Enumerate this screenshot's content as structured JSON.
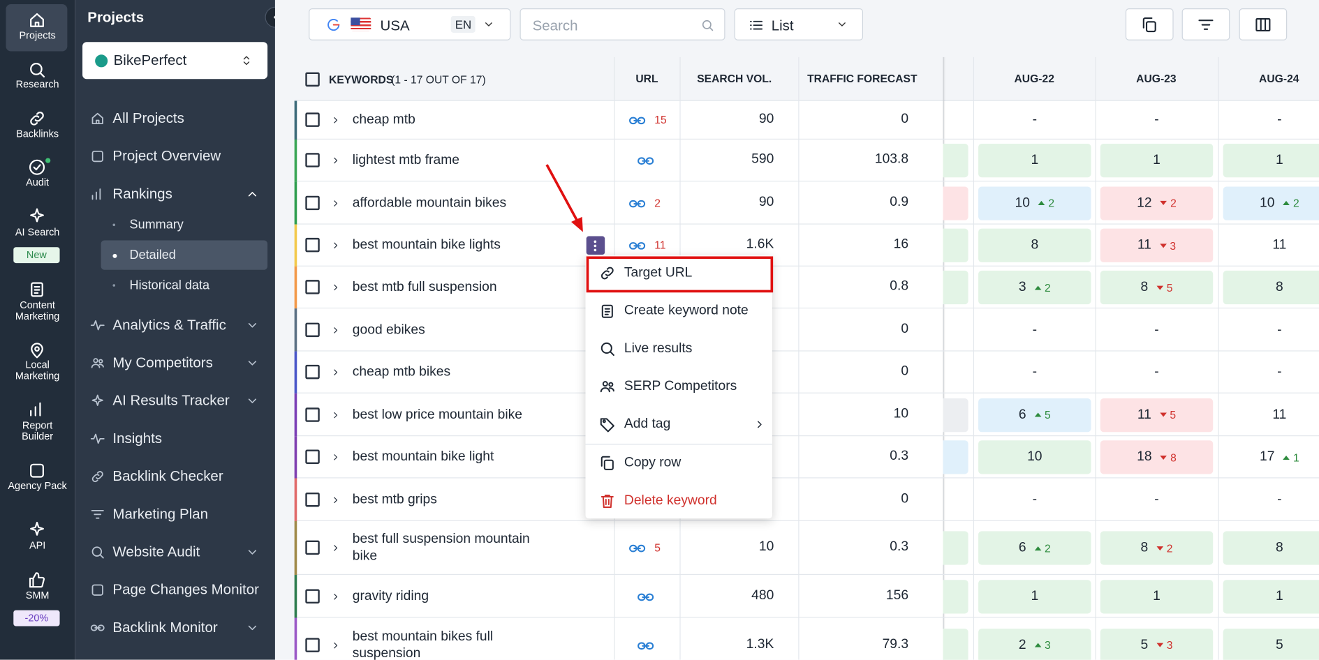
{
  "rail": {
    "items": [
      {
        "label": "Projects",
        "active": true
      },
      {
        "label": "Research"
      },
      {
        "label": "Backlinks"
      },
      {
        "label": "Audit"
      },
      {
        "label": "AI Search",
        "badge": "New"
      },
      {
        "label": "Content Marketing"
      },
      {
        "label": "Local Marketing"
      },
      {
        "label": "Report Builder"
      },
      {
        "label": "Agency Pack"
      },
      {
        "label": "API"
      },
      {
        "label": "SMM",
        "badge": "-20%"
      }
    ]
  },
  "sidebar": {
    "title": "Projects",
    "project": "BikePerfect",
    "nav": [
      {
        "label": "All Projects"
      },
      {
        "label": "Project Overview"
      },
      {
        "label": "Rankings",
        "expanded": true,
        "children": [
          {
            "label": "Summary"
          },
          {
            "label": "Detailed",
            "active": true
          },
          {
            "label": "Historical data"
          }
        ]
      },
      {
        "label": "Analytics & Traffic",
        "expandable": true
      },
      {
        "label": "My Competitors",
        "expandable": true
      },
      {
        "label": "AI Results Tracker",
        "expandable": true
      },
      {
        "label": "Insights"
      },
      {
        "label": "Backlink Checker"
      },
      {
        "label": "Marketing Plan"
      },
      {
        "label": "Website Audit",
        "expandable": true
      },
      {
        "label": "Page Changes Monitor"
      },
      {
        "label": "Backlink Monitor",
        "expandable": true
      }
    ]
  },
  "toolbar": {
    "country": "USA",
    "language": "EN",
    "search_placeholder": "Search",
    "view": "List"
  },
  "table": {
    "header": {
      "keywords": "KEYWORDS",
      "count": "(1 - 17 OUT OF 17)",
      "url": "URL",
      "search_vol": "SEARCH VOL.",
      "traffic": "TRAFFIC FORECAST",
      "months": [
        "AUG-22",
        "AUG-23",
        "AUG-24"
      ]
    },
    "rows": [
      {
        "keyword": "cheap mtb",
        "color": "#3d6b7a",
        "link": true,
        "url_count": 15,
        "search_vol": 90,
        "traffic": 0,
        "prev_color": null,
        "ranks": [
          {
            "value": "-"
          },
          {
            "value": "-"
          },
          {
            "value": "-"
          }
        ]
      },
      {
        "keyword": "lightest mtb frame",
        "color": "#3aa655",
        "link": true,
        "url_count": null,
        "search_vol": 590,
        "traffic": 103.8,
        "prev_color": "green",
        "ranks": [
          {
            "value": 1,
            "color": "green"
          },
          {
            "value": 1,
            "color": "green"
          },
          {
            "value": 1,
            "color": "green"
          }
        ]
      },
      {
        "keyword": "affordable mountain bikes",
        "color": "#2f9e4f",
        "link": true,
        "url_count": 2,
        "search_vol": 90,
        "traffic": 0.9,
        "prev_color": "red",
        "ranks": [
          {
            "value": 10,
            "change": 2,
            "trend": "up",
            "color": "blue"
          },
          {
            "value": 12,
            "change": 2,
            "trend": "down",
            "color": "red"
          },
          {
            "value": 10,
            "change": 2,
            "trend": "up",
            "color": "blue"
          }
        ]
      },
      {
        "keyword": "best mountain bike lights",
        "color": "#f2c94c",
        "link": true,
        "url_count": 11,
        "search_vol": "1.6K",
        "traffic": 16,
        "prev_color": "green",
        "ranks": [
          {
            "value": 8,
            "color": "green"
          },
          {
            "value": 11,
            "change": 3,
            "trend": "down",
            "color": "red"
          },
          {
            "value": 11
          }
        ]
      },
      {
        "keyword": "best mtb full suspension",
        "color": "#f2994a",
        "link": false,
        "url_count": null,
        "search_vol": null,
        "traffic": 0.8,
        "prev_color": "green",
        "ranks": [
          {
            "value": 3,
            "change": 2,
            "trend": "up",
            "color": "green"
          },
          {
            "value": 8,
            "change": 5,
            "trend": "down",
            "color": "green"
          },
          {
            "value": 8,
            "color": "green"
          }
        ]
      },
      {
        "keyword": "good ebikes",
        "color": "#5b7083",
        "link": false,
        "url_count": null,
        "search_vol": null,
        "traffic": 0,
        "prev_color": null,
        "ranks": [
          {
            "value": "-"
          },
          {
            "value": "-"
          },
          {
            "value": "-"
          }
        ]
      },
      {
        "keyword": "cheap mtb bikes",
        "color": "#4a56c9",
        "link": false,
        "url_count": null,
        "search_vol": null,
        "traffic": 0,
        "prev_color": null,
        "ranks": [
          {
            "value": "-"
          },
          {
            "value": "-"
          },
          {
            "value": "-"
          }
        ]
      },
      {
        "keyword": "best low price mountain bike",
        "color": "#7b3fb5",
        "link": false,
        "url_count": null,
        "search_vol": null,
        "traffic": 10,
        "prev_color": "gray",
        "ranks": [
          {
            "value": 6,
            "change": 5,
            "trend": "up",
            "color": "blue"
          },
          {
            "value": 11,
            "change": 5,
            "trend": "down",
            "color": "red"
          },
          {
            "value": 11
          }
        ]
      },
      {
        "keyword": "best mountain bike light",
        "color": "#7f3fb0",
        "link": false,
        "url_count": null,
        "search_vol": null,
        "traffic": 0.3,
        "prev_color": "blue",
        "ranks": [
          {
            "value": 10,
            "color": "green"
          },
          {
            "value": 18,
            "change": 8,
            "trend": "down",
            "color": "red"
          },
          {
            "value": 17,
            "change": 1,
            "trend": "up"
          }
        ]
      },
      {
        "keyword": "best mtb grips",
        "color": "#e06a6a",
        "link": false,
        "url_count": null,
        "search_vol": null,
        "traffic": 0,
        "prev_color": null,
        "ranks": [
          {
            "value": "-"
          },
          {
            "value": "-"
          },
          {
            "value": "-"
          }
        ]
      },
      {
        "keyword": "best full suspension mountain bike",
        "color": "#a08a4a",
        "link": true,
        "url_count": 5,
        "search_vol": 10,
        "traffic": 0.3,
        "prev_color": "green",
        "ranks": [
          {
            "value": 6,
            "change": 2,
            "trend": "up",
            "color": "green"
          },
          {
            "value": 8,
            "change": 2,
            "trend": "down",
            "color": "green"
          },
          {
            "value": 8,
            "color": "green"
          }
        ]
      },
      {
        "keyword": "gravity riding",
        "color": "#2e7d4f",
        "link": true,
        "url_count": null,
        "search_vol": 480,
        "traffic": 156,
        "prev_color": "green",
        "ranks": [
          {
            "value": 1,
            "color": "green"
          },
          {
            "value": 1,
            "color": "green"
          },
          {
            "value": 1,
            "color": "green"
          }
        ]
      },
      {
        "keyword": "best mountain bikes full suspension",
        "color": "#9b59c6",
        "link": true,
        "url_count": null,
        "search_vol": "1.3K",
        "traffic": 79.3,
        "prev_color": "green",
        "ranks": [
          {
            "value": 2,
            "change": 3,
            "trend": "up",
            "color": "green"
          },
          {
            "value": 5,
            "change": 3,
            "trend": "down",
            "color": "green"
          },
          {
            "value": 5,
            "color": "green"
          }
        ]
      }
    ]
  },
  "context_menu": {
    "row": 3,
    "highlighted": 0,
    "items": [
      {
        "label": "Target URL"
      },
      {
        "label": "Create keyword note"
      },
      {
        "label": "Live results"
      },
      {
        "label": "SERP Competitors"
      },
      {
        "label": "Add tag",
        "submenu": true
      },
      {
        "label": "Copy row",
        "separator_before": true
      },
      {
        "label": "Delete keyword",
        "danger": true
      }
    ]
  }
}
